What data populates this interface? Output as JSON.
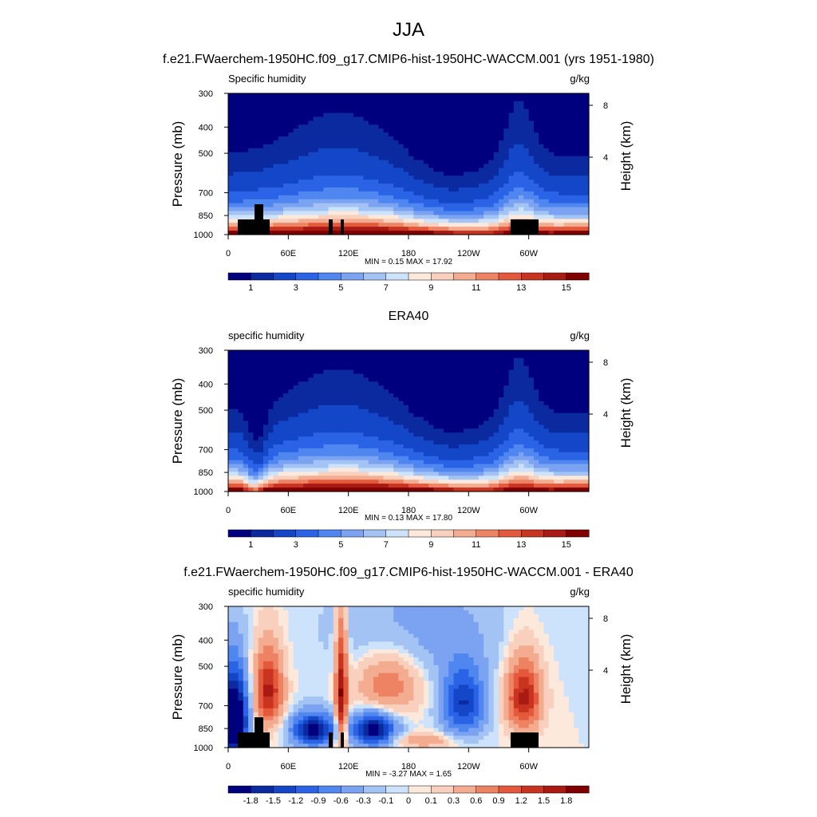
{
  "figure": {
    "title": "JJA"
  },
  "panels": [
    {
      "header": "f.e21.FWaerchem-1950HC.f09_g17.CMIP6-hist-1950HC-WACCM.001 (yrs 1951-1980)",
      "left_label": "Specific humidity",
      "right_label": "g/kg",
      "stats": "MIN =   0.15  MAX =   17.92"
    },
    {
      "header": "ERA40",
      "left_label": "specific humidity",
      "right_label": "g/kg",
      "stats": "MIN =   0.13  MAX =   17.80"
    },
    {
      "header": "f.e21.FWaerchem-1950HC.f09_g17.CMIP6-hist-1950HC-WACCM.001 - ERA40",
      "left_label": "specific humidity",
      "right_label": "g/kg",
      "stats": "MIN =  -3.27  MAX =   1.65"
    }
  ],
  "axes": {
    "ylabel": "Pressure (mb)",
    "y2label": "Height (km)",
    "pressure_ticks": [
      300,
      400,
      500,
      700,
      850,
      1000
    ],
    "height_ticks": [
      8,
      4
    ],
    "lon_ticks": [
      "0",
      "60E",
      "120E",
      "180",
      "120W",
      "60W"
    ],
    "y_scale": "log-pressure"
  },
  "colorbars": {
    "abs": {
      "colors": [
        "#00007f",
        "#0b2aa0",
        "#1446c8",
        "#2a63e6",
        "#4f86f0",
        "#7ba3f2",
        "#a4c3f5",
        "#cde3fb",
        "#fde8dc",
        "#f9cfbd",
        "#f4ac91",
        "#ee8364",
        "#e4583c",
        "#c93420",
        "#a91b12",
        "#800000"
      ],
      "labels": [
        "1",
        "3",
        "5",
        "7",
        "9",
        "11",
        "13",
        "15"
      ]
    },
    "diff": {
      "colors": [
        "#00007f",
        "#0b2aa0",
        "#1446c8",
        "#2a63e6",
        "#4f86f0",
        "#7ba3f2",
        "#a4c3f5",
        "#cde3fb",
        "#fde8dc",
        "#f9cfbd",
        "#f4ac91",
        "#ee8364",
        "#e4583c",
        "#c93420",
        "#a91b12",
        "#800000"
      ],
      "labels": [
        "-1.8",
        "-1.5",
        "-1.2",
        "-0.9",
        "-0.6",
        "-0.3",
        "-0.1",
        "0",
        "0.1",
        "0.3",
        "0.6",
        "0.9",
        "1.2",
        "1.5",
        "1.8"
      ]
    }
  },
  "chart_data": [
    {
      "type": "heatmap",
      "title": "f.e21.FWaerchem-1950HC.f09_g17.CMIP6-hist-1950HC-WACCM.001 (yrs 1951-1980)",
      "variable": "Specific humidity",
      "units": "g/kg",
      "x": "longitude 0-360",
      "y": "pressure 1000-300 mb",
      "min": 0.15,
      "max": 17.92,
      "levels": [
        0.5,
        1,
        2,
        3,
        4,
        5,
        6,
        7,
        8,
        9,
        10,
        11,
        12,
        13,
        14,
        15
      ]
    },
    {
      "type": "heatmap",
      "title": "ERA40",
      "variable": "specific humidity",
      "units": "g/kg",
      "min": 0.13,
      "max": 17.8,
      "levels": [
        0.5,
        1,
        2,
        3,
        4,
        5,
        6,
        7,
        8,
        9,
        10,
        11,
        12,
        13,
        14,
        15
      ]
    },
    {
      "type": "heatmap",
      "title": "f.e21.FWaerchem-1950HC.f09_g17.CMIP6-hist-1950HC-WACCM.001 - ERA40",
      "variable": "specific humidity",
      "units": "g/kg",
      "min": -3.27,
      "max": 1.65,
      "levels": [
        -1.8,
        -1.5,
        -1.2,
        -0.9,
        -0.6,
        -0.3,
        -0.1,
        0,
        0.1,
        0.3,
        0.6,
        0.9,
        1.2,
        1.5,
        1.8
      ]
    }
  ]
}
